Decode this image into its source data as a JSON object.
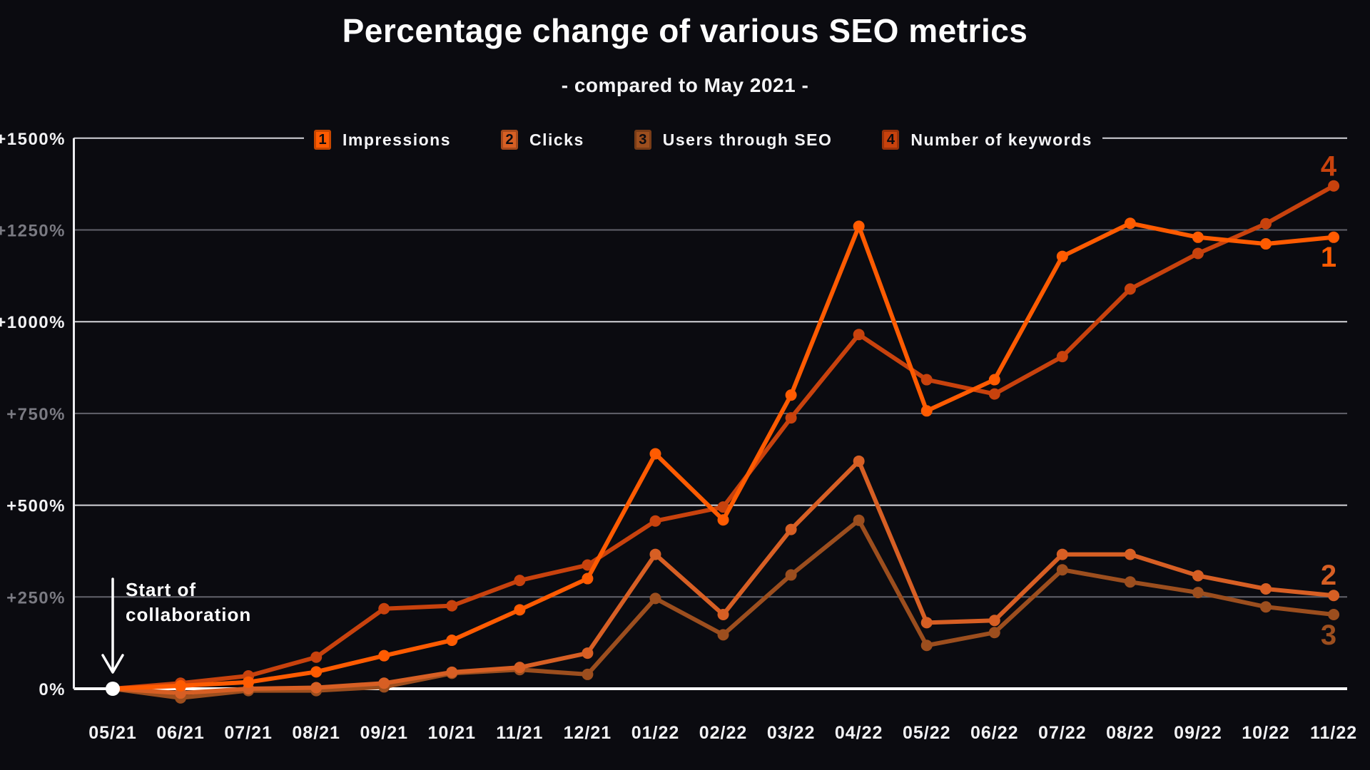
{
  "header": {
    "title": "Percentage change of various SEO metrics",
    "subtitle": "- compared to May 2021 -"
  },
  "annotation": {
    "line1": "Start of",
    "line2": "collaboration"
  },
  "colors": {
    "background": "#0B0B10",
    "grid_major": "#D5D5DA",
    "grid_minor": "#62626B",
    "zero_line": "#FFFFFF",
    "axis_line": "#ECECF0",
    "tick_bright": "#F2F2F4",
    "tick_dim": "#7A7A82",
    "x_tick": "#F2F2F4",
    "start_dot": "#FFFFFF"
  },
  "chart_data": {
    "type": "line",
    "title": "Percentage change of various SEO metrics",
    "subtitle": "- compared to May 2021 -",
    "x_labels": [
      "05/21",
      "06/21",
      "07/21",
      "08/21",
      "09/21",
      "10/21",
      "11/21",
      "12/21",
      "01/22",
      "02/22",
      "03/22",
      "04/22",
      "05/22",
      "06/22",
      "07/22",
      "08/22",
      "09/22",
      "10/22",
      "11/22"
    ],
    "y_ticks": [
      {
        "value": 0,
        "label": "0%"
      },
      {
        "value": 250,
        "label": "+250%"
      },
      {
        "value": 500,
        "label": "+500%"
      },
      {
        "value": 750,
        "label": "+750%"
      },
      {
        "value": 1000,
        "label": "+1000%"
      },
      {
        "value": 1250,
        "label": "+1250%"
      },
      {
        "value": 1500,
        "label": "+1500%"
      }
    ],
    "ylim": [
      -60,
      1500
    ],
    "grid": true,
    "legend_position": "top",
    "baseline_note": "values are % change vs May 2021; all series start at 0% on 05/21",
    "series": [
      {
        "number": "1",
        "name": "Impressions",
        "color": "#FF5B01",
        "values": [
          0,
          8,
          18,
          46,
          90,
          132,
          215,
          300,
          640,
          460,
          800,
          1260,
          757,
          842,
          1178,
          1268,
          1230,
          1212,
          1230
        ]
      },
      {
        "number": "2",
        "name": "Clicks",
        "color": "#D75F24",
        "values": [
          0,
          -12,
          0,
          3,
          15,
          45,
          58,
          97,
          366,
          202,
          434,
          620,
          180,
          186,
          366,
          366,
          308,
          272,
          254
        ]
      },
      {
        "number": "3",
        "name": "Users through SEO",
        "color": "#9C4E1E",
        "values": [
          0,
          -25,
          -5,
          -5,
          5,
          42,
          52,
          39,
          246,
          147,
          310,
          459,
          118,
          153,
          324,
          291,
          262,
          223,
          202
        ]
      },
      {
        "number": "4",
        "name": "Number of keywords",
        "color": "#C8420D",
        "values": [
          0,
          15,
          35,
          86,
          218,
          226,
          295,
          337,
          457,
          495,
          738,
          965,
          842,
          803,
          905,
          1089,
          1186,
          1267,
          1370
        ]
      }
    ]
  }
}
